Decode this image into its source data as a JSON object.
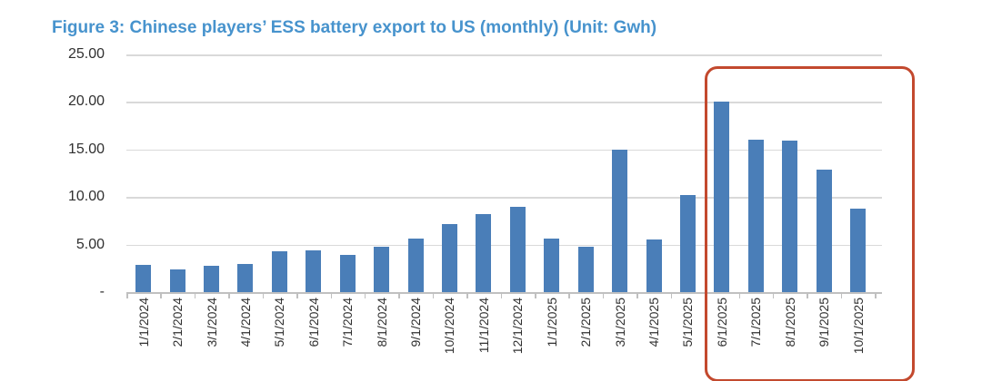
{
  "figure": {
    "title": "Figure 3: Chinese players’ ESS battery export to US (monthly) (Unit: Gwh)"
  },
  "chart_data": {
    "type": "bar",
    "title": "Figure 3: Chinese players’ ESS battery export to US (monthly) (Unit: Gwh)",
    "unit": "Gwh",
    "categories": [
      "1/1/2024",
      "2/1/2024",
      "3/1/2024",
      "4/1/2024",
      "5/1/2024",
      "6/1/2024",
      "7/1/2024",
      "8/1/2024",
      "9/1/2024",
      "10/1/2024",
      "11/1/2024",
      "12/1/2024",
      "1/1/2025",
      "2/1/2025",
      "3/1/2025",
      "4/1/2025",
      "5/1/2025",
      "6/1/2025",
      "7/1/2025",
      "8/1/2025",
      "9/1/2025",
      "10/1/2025"
    ],
    "values": [
      2.9,
      2.4,
      2.8,
      3.0,
      4.3,
      4.4,
      3.9,
      4.8,
      5.6,
      7.2,
      8.2,
      9.0,
      5.6,
      4.8,
      15.0,
      5.5,
      10.2,
      20.0,
      16.0,
      15.9,
      12.9,
      8.8
    ],
    "xlabel": "",
    "ylabel": "",
    "ylim": [
      0,
      25
    ],
    "yticks": [
      {
        "value": 0,
        "label": "-"
      },
      {
        "value": 5,
        "label": "5.00"
      },
      {
        "value": 10,
        "label": "10.00"
      },
      {
        "value": 15,
        "label": "15.00"
      },
      {
        "value": 20,
        "label": "20.00"
      },
      {
        "value": 25,
        "label": "25.00"
      }
    ],
    "grid": true,
    "legend": null,
    "highlight": {
      "from": "6/1/2025",
      "to": "10/1/2025"
    },
    "colors": {
      "bar": "#4a7eb8",
      "gridline": "#d9d9d9",
      "axis": "#c0c0c0",
      "tick_label": "#303030",
      "title": "#4793cd",
      "highlight_border": "#c3492e"
    }
  }
}
